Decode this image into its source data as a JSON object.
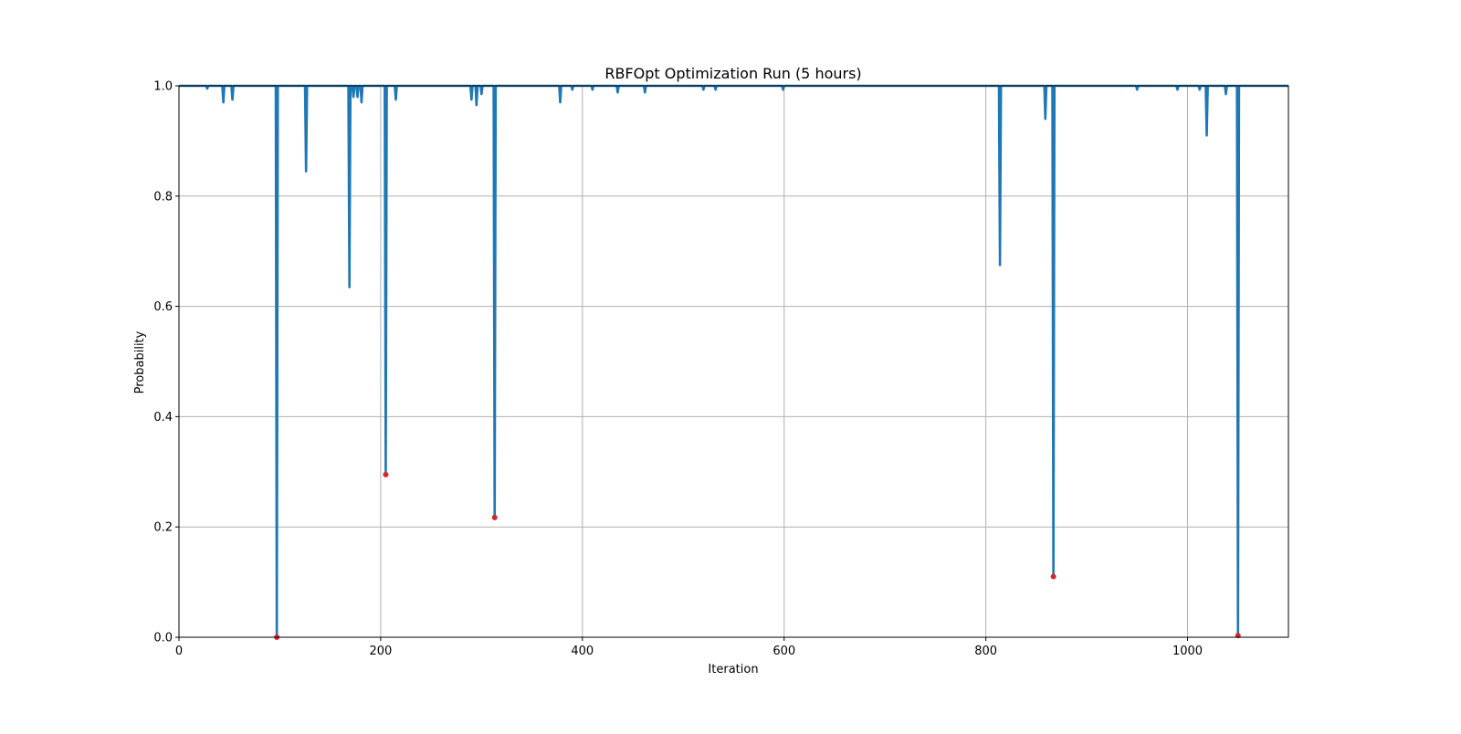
{
  "chart_data": {
    "type": "line",
    "title": "RBFOpt Optimization Run (5 hours)",
    "xlabel": "Iteration",
    "ylabel": "Probability",
    "xlim": [
      0,
      1100
    ],
    "ylim": [
      0.0,
      1.0
    ],
    "xticks": [
      0,
      200,
      400,
      600,
      800,
      1000
    ],
    "yticks": [
      0.0,
      0.2,
      0.4,
      0.6,
      0.8,
      1.0
    ],
    "xtick_labels": [
      "0",
      "200",
      "400",
      "600",
      "800",
      "1000"
    ],
    "ytick_labels": [
      "0.0",
      "0.2",
      "0.4",
      "0.6",
      "0.8",
      "1.0"
    ],
    "grid": true,
    "colors": {
      "line": "#1f77b4",
      "marker": "#d62728",
      "grid": "#b0b0b0"
    },
    "baseline": 1.0,
    "dips": [
      {
        "x": 28,
        "y": 0.995
      },
      {
        "x": 44,
        "y": 0.97
      },
      {
        "x": 53,
        "y": 0.975
      },
      {
        "x": 97,
        "y": 0.0
      },
      {
        "x": 126,
        "y": 0.845
      },
      {
        "x": 169,
        "y": 0.635
      },
      {
        "x": 173,
        "y": 0.98
      },
      {
        "x": 177,
        "y": 0.98
      },
      {
        "x": 181,
        "y": 0.97
      },
      {
        "x": 205,
        "y": 0.295
      },
      {
        "x": 215,
        "y": 0.975
      },
      {
        "x": 290,
        "y": 0.975
      },
      {
        "x": 295,
        "y": 0.965
      },
      {
        "x": 300,
        "y": 0.985
      },
      {
        "x": 313,
        "y": 0.217
      },
      {
        "x": 378,
        "y": 0.97
      },
      {
        "x": 390,
        "y": 0.993
      },
      {
        "x": 410,
        "y": 0.993
      },
      {
        "x": 435,
        "y": 0.988
      },
      {
        "x": 462,
        "y": 0.988
      },
      {
        "x": 520,
        "y": 0.993
      },
      {
        "x": 532,
        "y": 0.993
      },
      {
        "x": 599,
        "y": 0.993
      },
      {
        "x": 814,
        "y": 0.675
      },
      {
        "x": 859,
        "y": 0.94
      },
      {
        "x": 867,
        "y": 0.11
      },
      {
        "x": 950,
        "y": 0.993
      },
      {
        "x": 990,
        "y": 0.993
      },
      {
        "x": 1012,
        "y": 0.993
      },
      {
        "x": 1019,
        "y": 0.91
      },
      {
        "x": 1038,
        "y": 0.985
      },
      {
        "x": 1050,
        "y": 0.003
      }
    ],
    "highlighted_points": [
      {
        "x": 97,
        "y": 0.0
      },
      {
        "x": 205,
        "y": 0.295
      },
      {
        "x": 313,
        "y": 0.217
      },
      {
        "x": 867,
        "y": 0.11
      },
      {
        "x": 1050,
        "y": 0.003
      }
    ]
  }
}
